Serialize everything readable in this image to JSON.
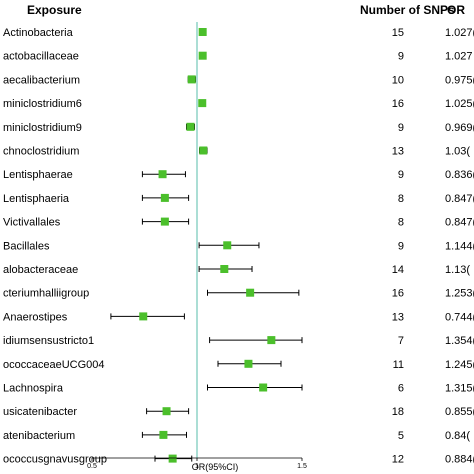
{
  "headers": {
    "exposure": "Exposure",
    "snps": "Number of SNPs",
    "or": "OR"
  },
  "chart_data": {
    "type": "forest",
    "xlabel": "OR(95%CI)",
    "xlim": [
      0.5,
      1.5
    ],
    "xticks": [
      0.5,
      1,
      1.5
    ],
    "reference_line": 1,
    "colors": {
      "marker": "#4bbf2b",
      "reference": "#8fd3c7",
      "whisker": "#000000"
    },
    "rows": [
      {
        "exposure": "Actinobacteria",
        "snps": "15",
        "or_text": "1.027(",
        "or": 1.027,
        "lo": 1.015,
        "hi": 1.04
      },
      {
        "exposure": "actobacillaceae",
        "snps": "9",
        "or_text": "1.027",
        "or": 1.027,
        "lo": 1.013,
        "hi": 1.041
      },
      {
        "exposure": "aecalibacterium",
        "snps": "10",
        "or_text": "0.975(",
        "or": 0.975,
        "lo": 0.958,
        "hi": 0.993
      },
      {
        "exposure": "miniclostridium6",
        "snps": "16",
        "or_text": "1.025(",
        "or": 1.025,
        "lo": 1.015,
        "hi": 1.035
      },
      {
        "exposure": "miniclostridium9",
        "snps": "9",
        "or_text": "0.969(",
        "or": 0.969,
        "lo": 0.95,
        "hi": 0.988
      },
      {
        "exposure": "chnoclostridium",
        "snps": "13",
        "or_text": "1.03(",
        "or": 1.03,
        "lo": 1.012,
        "hi": 1.048
      },
      {
        "exposure": "Lentisphaerae",
        "snps": "9",
        "or_text": "0.836(",
        "or": 0.836,
        "lo": 0.74,
        "hi": 0.945
      },
      {
        "exposure": "Lentisphaeria",
        "snps": "8",
        "or_text": "0.847(",
        "or": 0.847,
        "lo": 0.74,
        "hi": 0.96
      },
      {
        "exposure": "Victivallales",
        "snps": "8",
        "or_text": "0.847(",
        "or": 0.847,
        "lo": 0.74,
        "hi": 0.96
      },
      {
        "exposure": "Bacillales",
        "snps": "9",
        "or_text": "1.144(",
        "or": 1.144,
        "lo": 1.01,
        "hi": 1.295
      },
      {
        "exposure": "alobacteraceae",
        "snps": "14",
        "or_text": "1.13(",
        "or": 1.13,
        "lo": 1.01,
        "hi": 1.262
      },
      {
        "exposure": "cteriumhalliigroup",
        "snps": "16",
        "or_text": "1.253(",
        "or": 1.253,
        "lo": 1.05,
        "hi": 1.485
      },
      {
        "exposure": "Anaerostipes",
        "snps": "13",
        "or_text": "0.744(",
        "or": 0.744,
        "lo": 0.59,
        "hi": 0.94
      },
      {
        "exposure": "idiumsensustricto1",
        "snps": "7",
        "or_text": "1.354(",
        "or": 1.354,
        "lo": 1.06,
        "hi": 1.74
      },
      {
        "exposure": "ococcaceaeUCG004",
        "snps": "11",
        "or_text": "1.245(",
        "or": 1.245,
        "lo": 1.1,
        "hi": 1.4
      },
      {
        "exposure": "Lachnospira",
        "snps": "6",
        "or_text": "1.315(",
        "or": 1.315,
        "lo": 1.05,
        "hi": 1.65
      },
      {
        "exposure": "usicatenibacter",
        "snps": "18",
        "or_text": "0.855(",
        "or": 0.855,
        "lo": 0.76,
        "hi": 0.96
      },
      {
        "exposure": "atenibacterium",
        "snps": "5",
        "or_text": "0.84(",
        "or": 0.84,
        "lo": 0.74,
        "hi": 0.95
      },
      {
        "exposure": "ococcusgnavusgroup",
        "snps": "12",
        "or_text": "0.884(",
        "or": 0.884,
        "lo": 0.8,
        "hi": 0.975
      }
    ]
  }
}
